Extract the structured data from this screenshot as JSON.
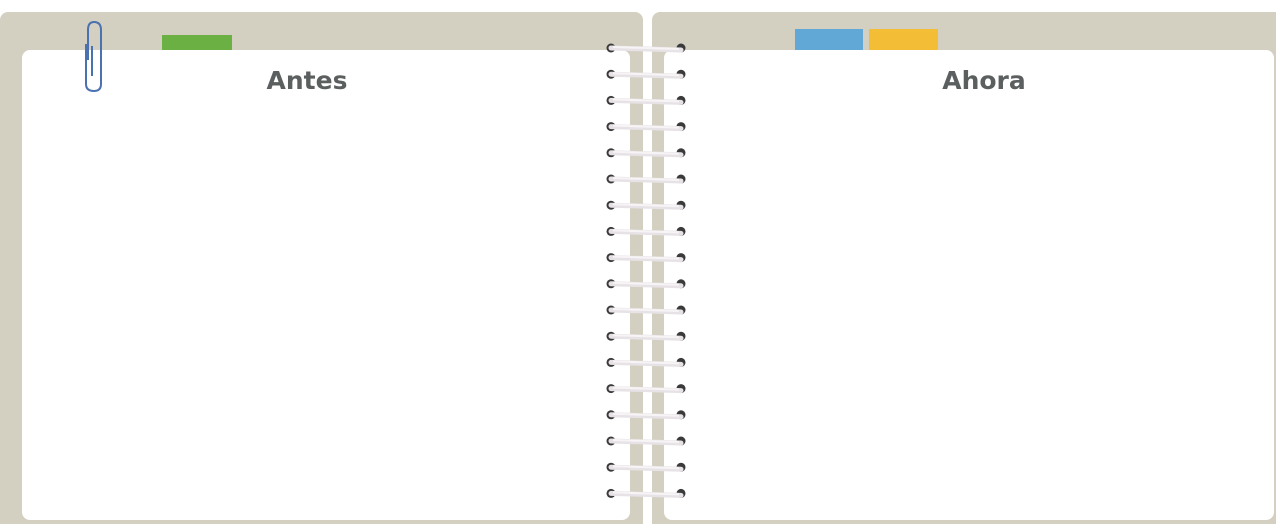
{
  "pages": [
    {
      "title": "Antes"
    },
    {
      "title": "Ahora"
    }
  ]
}
